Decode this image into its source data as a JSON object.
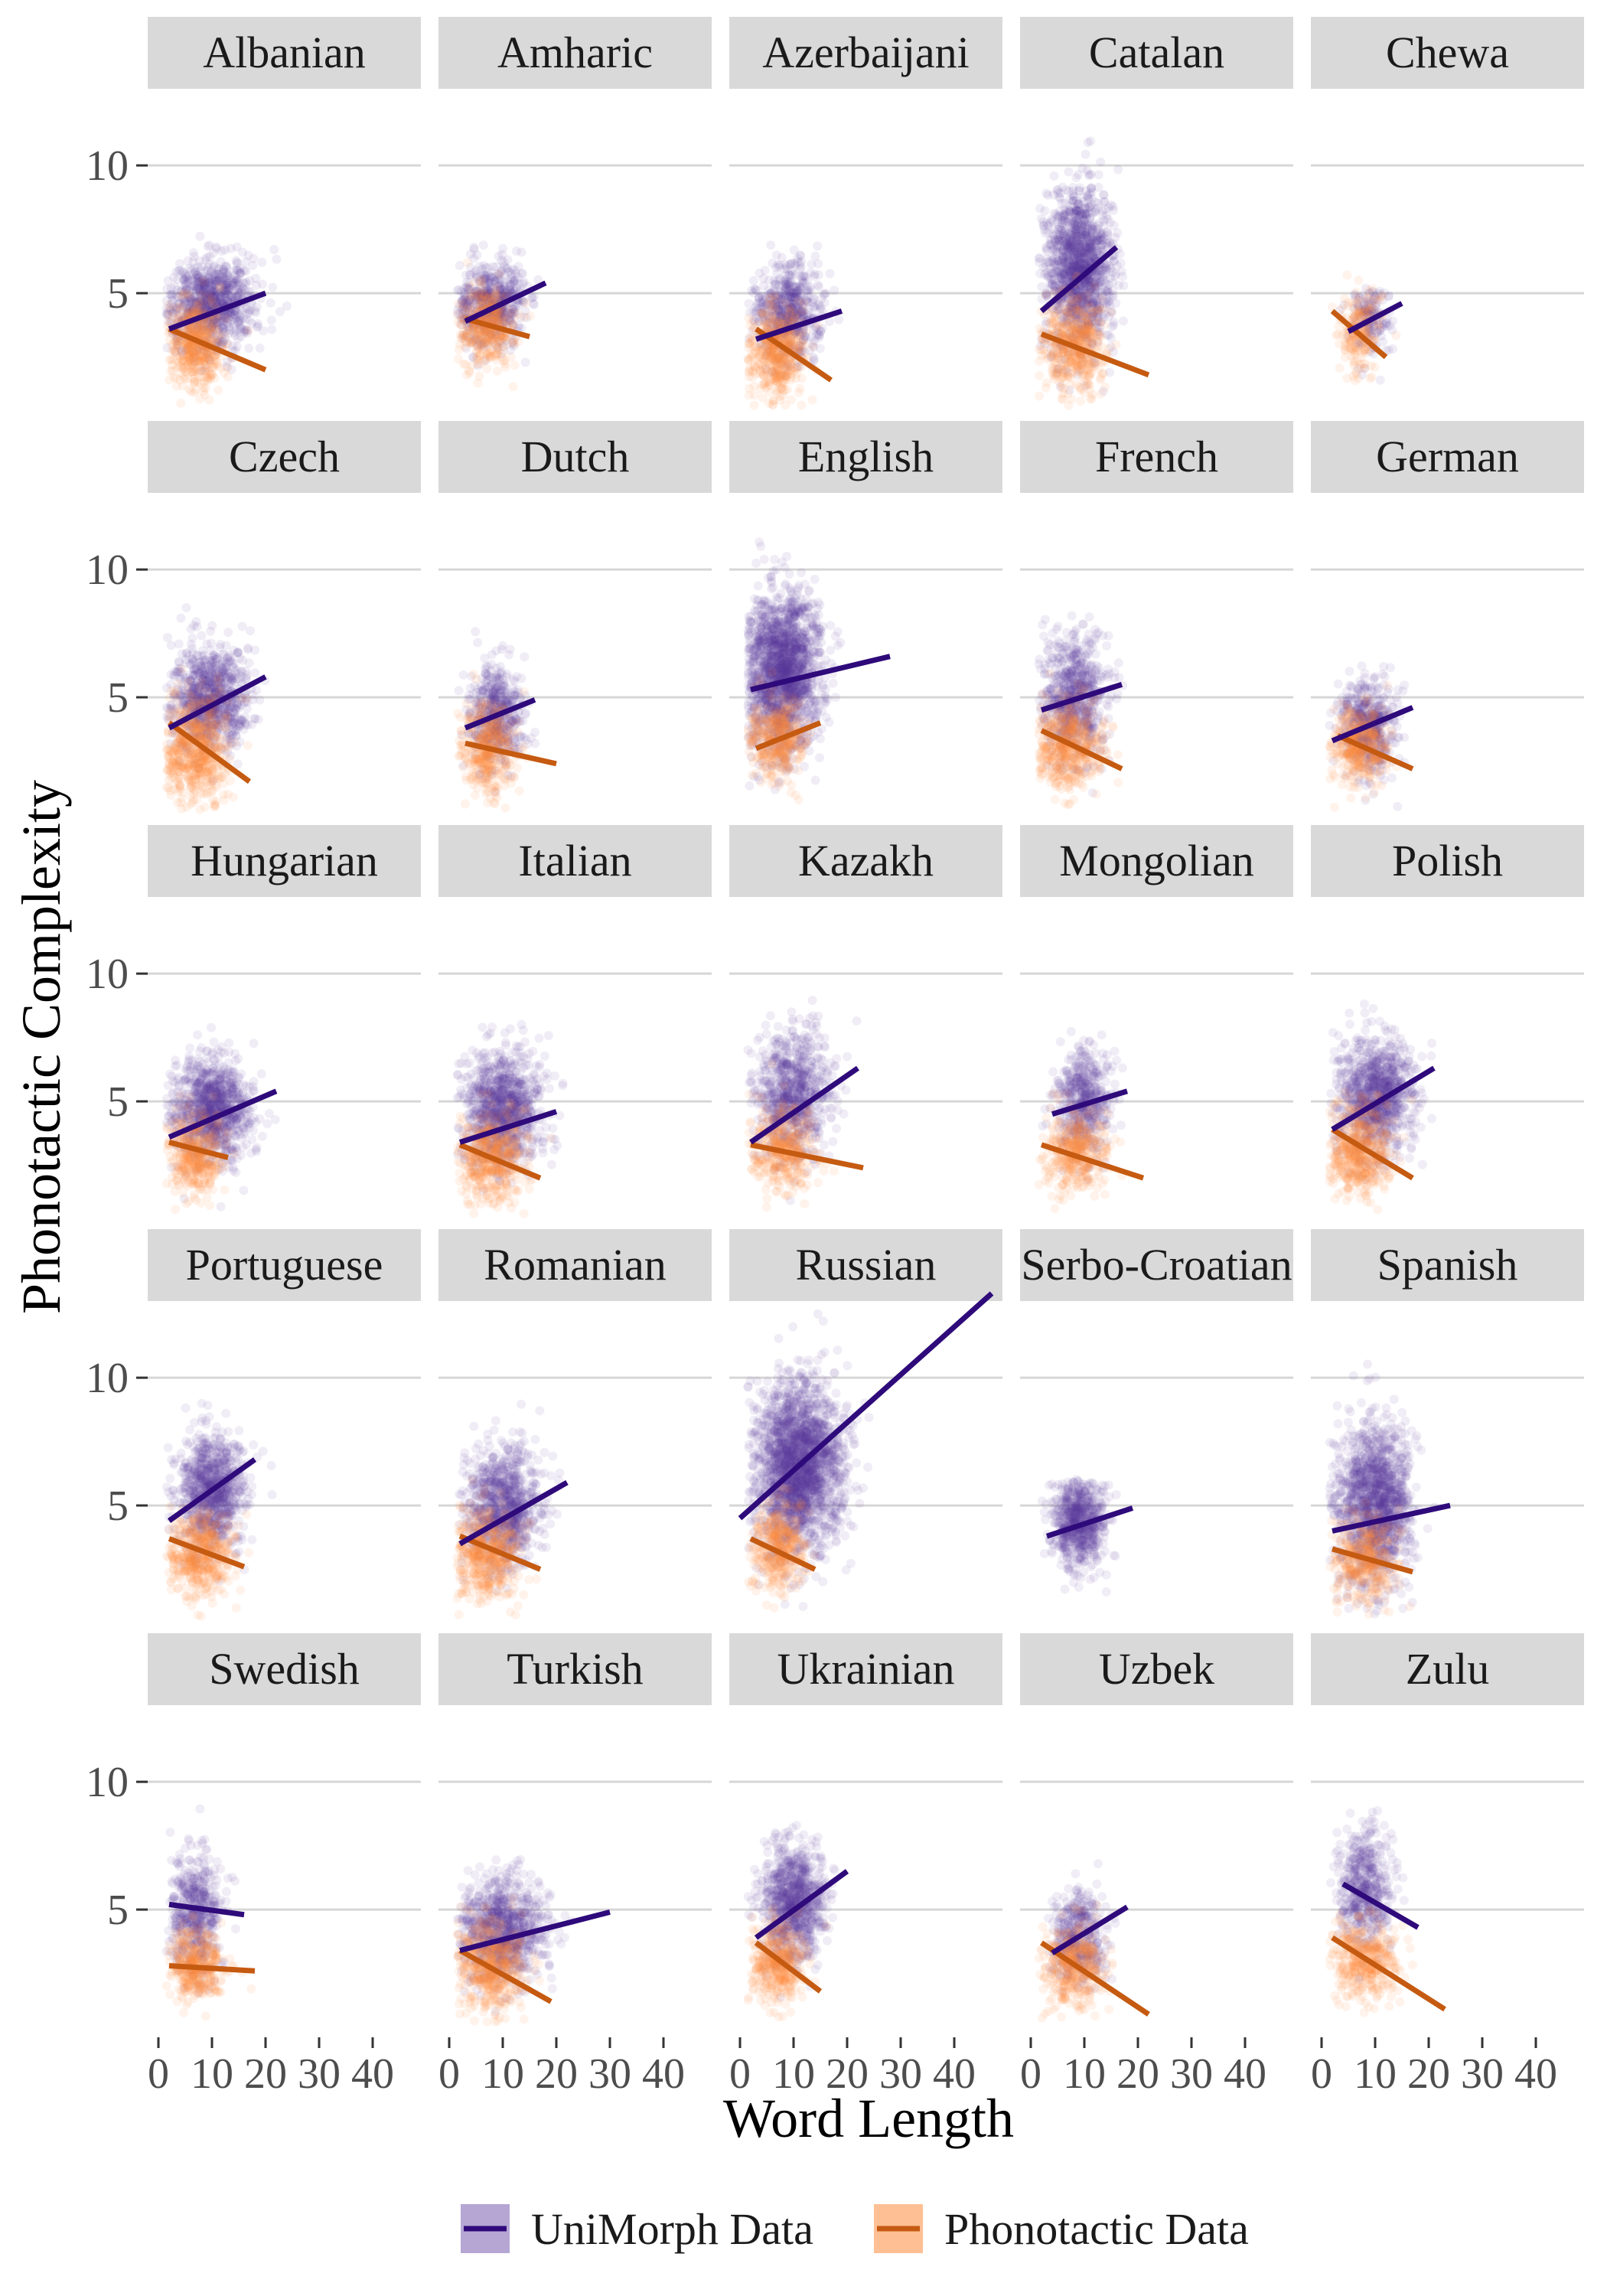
{
  "chart_data": {
    "type": "scatter",
    "xlabel": "Word Length",
    "ylabel": "Phonotactic Complexity",
    "xlim": [
      0,
      47
    ],
    "ylim": [
      0,
      13
    ],
    "xticks": [
      0,
      10,
      20,
      30,
      40
    ],
    "yticks": [
      5,
      10
    ],
    "grid": true,
    "legend_position": "bottom",
    "series": [
      {
        "name": "UniMorph Data",
        "color": "#2e0a7a",
        "point_color": "#5b3aa0"
      },
      {
        "name": "Phonotactic Data",
        "color": "#c55a11",
        "point_color": "#ff8a3d"
      }
    ],
    "panels": [
      {
        "label": "Albanian",
        "unimorph": {
          "x": [
            2,
            20
          ],
          "y": [
            3.6,
            5.0
          ],
          "cx": 10,
          "cy": 4.6,
          "sx": 4,
          "sy": 0.9,
          "n": 900
        },
        "phonotactic": {
          "x": [
            2,
            20
          ],
          "y": [
            3.6,
            2.0
          ],
          "cx": 7,
          "cy": 3.1,
          "sx": 2.5,
          "sy": 0.9,
          "n": 500
        }
      },
      {
        "label": "Amharic",
        "unimorph": {
          "x": [
            3,
            18
          ],
          "y": [
            3.9,
            5.4
          ],
          "cx": 8,
          "cy": 4.6,
          "sx": 3,
          "sy": 0.8,
          "n": 600
        },
        "phonotactic": {
          "x": [
            3,
            15
          ],
          "y": [
            4.0,
            3.3
          ],
          "cx": 7,
          "cy": 3.6,
          "sx": 2.5,
          "sy": 0.8,
          "n": 400
        }
      },
      {
        "label": "Azerbaijani",
        "unimorph": {
          "x": [
            3,
            19
          ],
          "y": [
            3.2,
            4.3
          ],
          "cx": 9,
          "cy": 4.3,
          "sx": 3,
          "sy": 0.9,
          "n": 600
        },
        "phonotactic": {
          "x": [
            3,
            17
          ],
          "y": [
            3.6,
            1.6
          ],
          "cx": 7,
          "cy": 2.7,
          "sx": 2.5,
          "sy": 0.9,
          "n": 500
        }
      },
      {
        "label": "Catalan",
        "unimorph": {
          "x": [
            2,
            16
          ],
          "y": [
            4.3,
            6.8
          ],
          "cx": 9,
          "cy": 6.0,
          "sx": 3,
          "sy": 1.5,
          "n": 1400
        },
        "phonotactic": {
          "x": [
            2,
            22
          ],
          "y": [
            3.4,
            1.8
          ],
          "cx": 8,
          "cy": 3.0,
          "sx": 3,
          "sy": 0.9,
          "n": 500
        }
      },
      {
        "label": "Chewa",
        "unimorph": {
          "x": [
            5,
            15
          ],
          "y": [
            3.5,
            4.6
          ],
          "cx": 9,
          "cy": 4.0,
          "sx": 2,
          "sy": 0.7,
          "n": 150
        },
        "phonotactic": {
          "x": [
            2,
            12
          ],
          "y": [
            4.3,
            2.5
          ],
          "cx": 7,
          "cy": 3.5,
          "sx": 2,
          "sy": 0.8,
          "n": 200
        }
      },
      {
        "label": "Czech",
        "unimorph": {
          "x": [
            2,
            20
          ],
          "y": [
            3.8,
            5.8
          ],
          "cx": 10,
          "cy": 5.0,
          "sx": 3.5,
          "sy": 1.0,
          "n": 900
        },
        "phonotactic": {
          "x": [
            2,
            17
          ],
          "y": [
            4.0,
            1.7
          ],
          "cx": 7,
          "cy": 3.0,
          "sx": 3,
          "sy": 1.0,
          "n": 600
        }
      },
      {
        "label": "Dutch",
        "unimorph": {
          "x": [
            3,
            16
          ],
          "y": [
            3.8,
            4.9
          ],
          "cx": 9,
          "cy": 4.3,
          "sx": 2.5,
          "sy": 1.0,
          "n": 500
        },
        "phonotactic": {
          "x": [
            3,
            20
          ],
          "y": [
            3.2,
            2.4
          ],
          "cx": 7,
          "cy": 3.0,
          "sx": 2.5,
          "sy": 0.9,
          "n": 400
        }
      },
      {
        "label": "English",
        "unimorph": {
          "x": [
            2,
            28
          ],
          "y": [
            5.3,
            6.6
          ],
          "cx": 8,
          "cy": 6.0,
          "sx": 3.5,
          "sy": 1.5,
          "n": 1800
        },
        "phonotactic": {
          "x": [
            3,
            15
          ],
          "y": [
            3.0,
            4.0
          ],
          "cx": 7,
          "cy": 3.4,
          "sx": 2.5,
          "sy": 0.8,
          "n": 400
        }
      },
      {
        "label": "French",
        "unimorph": {
          "x": [
            2,
            17
          ],
          "y": [
            4.5,
            5.5
          ],
          "cx": 8,
          "cy": 5.0,
          "sx": 3,
          "sy": 1.2,
          "n": 700
        },
        "phonotactic": {
          "x": [
            2,
            17
          ],
          "y": [
            3.7,
            2.2
          ],
          "cx": 7,
          "cy": 3.1,
          "sx": 3,
          "sy": 0.9,
          "n": 500
        }
      },
      {
        "label": "German",
        "unimorph": {
          "x": [
            2,
            17
          ],
          "y": [
            3.3,
            4.6
          ],
          "cx": 9,
          "cy": 4.0,
          "sx": 2.5,
          "sy": 0.9,
          "n": 500
        },
        "phonotactic": {
          "x": [
            3,
            17
          ],
          "y": [
            3.5,
            2.2
          ],
          "cx": 7,
          "cy": 3.0,
          "sx": 2.5,
          "sy": 0.8,
          "n": 400
        }
      },
      {
        "label": "Hungarian",
        "unimorph": {
          "x": [
            2,
            22
          ],
          "y": [
            3.6,
            5.4
          ],
          "cx": 10,
          "cy": 4.7,
          "sx": 3.5,
          "sy": 1.0,
          "n": 1000
        },
        "phonotactic": {
          "x": [
            2,
            13
          ],
          "y": [
            3.4,
            2.8
          ],
          "cx": 7,
          "cy": 3.0,
          "sx": 2.5,
          "sy": 0.8,
          "n": 400
        }
      },
      {
        "label": "Italian",
        "unimorph": {
          "x": [
            2,
            20
          ],
          "y": [
            3.4,
            4.6
          ],
          "cx": 10,
          "cy": 4.7,
          "sx": 3.5,
          "sy": 1.1,
          "n": 1000
        },
        "phonotactic": {
          "x": [
            2,
            17
          ],
          "y": [
            3.3,
            2.0
          ],
          "cx": 8,
          "cy": 2.8,
          "sx": 3,
          "sy": 0.9,
          "n": 500
        }
      },
      {
        "label": "Kazakh",
        "unimorph": {
          "x": [
            2,
            22
          ],
          "y": [
            3.4,
            6.3
          ],
          "cx": 10,
          "cy": 5.3,
          "sx": 3.5,
          "sy": 1.2,
          "n": 800
        },
        "phonotactic": {
          "x": [
            2,
            23
          ],
          "y": [
            3.3,
            2.4
          ],
          "cx": 8,
          "cy": 3.1,
          "sx": 3,
          "sy": 0.8,
          "n": 400
        }
      },
      {
        "label": "Mongolian",
        "unimorph": {
          "x": [
            4,
            18
          ],
          "y": [
            4.5,
            5.4
          ],
          "cx": 10,
          "cy": 5.0,
          "sx": 2.5,
          "sy": 1.0,
          "n": 500
        },
        "phonotactic": {
          "x": [
            2,
            21
          ],
          "y": [
            3.3,
            2.0
          ],
          "cx": 8,
          "cy": 3.0,
          "sx": 3,
          "sy": 0.8,
          "n": 400
        }
      },
      {
        "label": "Polish",
        "unimorph": {
          "x": [
            2,
            21
          ],
          "y": [
            3.9,
            6.3
          ],
          "cx": 10,
          "cy": 5.2,
          "sx": 3.5,
          "sy": 1.1,
          "n": 1000
        },
        "phonotactic": {
          "x": [
            2,
            17
          ],
          "y": [
            3.9,
            2.0
          ],
          "cx": 7,
          "cy": 3.0,
          "sx": 3,
          "sy": 0.9,
          "n": 500
        }
      },
      {
        "label": "Portuguese",
        "unimorph": {
          "x": [
            2,
            18
          ],
          "y": [
            4.4,
            6.8
          ],
          "cx": 10,
          "cy": 5.6,
          "sx": 3,
          "sy": 1.1,
          "n": 900
        },
        "phonotactic": {
          "x": [
            2,
            16
          ],
          "y": [
            3.7,
            2.6
          ],
          "cx": 8,
          "cy": 3.1,
          "sx": 3,
          "sy": 0.8,
          "n": 500
        }
      },
      {
        "label": "Romanian",
        "unimorph": {
          "x": [
            2,
            22
          ],
          "y": [
            3.5,
            5.9
          ],
          "cx": 10,
          "cy": 5.0,
          "sx": 3.5,
          "sy": 1.1,
          "n": 900
        },
        "phonotactic": {
          "x": [
            2,
            17
          ],
          "y": [
            3.8,
            2.5
          ],
          "cx": 7,
          "cy": 3.1,
          "sx": 3,
          "sy": 0.9,
          "n": 500
        }
      },
      {
        "label": "Russian",
        "unimorph": {
          "x": [
            0,
            47
          ],
          "y": [
            4.5,
            13.3
          ],
          "cx": 11,
          "cy": 6.6,
          "sx": 4,
          "sy": 1.6,
          "n": 2200
        },
        "phonotactic": {
          "x": [
            2,
            14
          ],
          "y": [
            3.7,
            2.5
          ],
          "cx": 7,
          "cy": 3.3,
          "sx": 2.5,
          "sy": 0.8,
          "n": 400
        }
      },
      {
        "label": "Serbo-Croatian",
        "unimorph": {
          "x": [
            3,
            19
          ],
          "y": [
            3.8,
            4.9
          ],
          "cx": 9,
          "cy": 4.2,
          "sx": 2.5,
          "sy": 0.8,
          "n": 700
        },
        "phonotactic": null
      },
      {
        "label": "Spanish",
        "unimorph": {
          "x": [
            2,
            24
          ],
          "y": [
            4.0,
            5.0
          ],
          "cx": 10,
          "cy": 5.2,
          "sx": 3.5,
          "sy": 1.5,
          "n": 1400
        },
        "phonotactic": {
          "x": [
            2,
            17
          ],
          "y": [
            3.3,
            2.4
          ],
          "cx": 8,
          "cy": 2.9,
          "sx": 3,
          "sy": 0.8,
          "n": 400
        }
      },
      {
        "label": "Swedish",
        "unimorph": {
          "x": [
            2,
            16
          ],
          "y": [
            5.2,
            4.8
          ],
          "cx": 7,
          "cy": 5.0,
          "sx": 2.5,
          "sy": 1.2,
          "n": 500
        },
        "phonotactic": {
          "x": [
            2,
            18
          ],
          "y": [
            2.8,
            2.6
          ],
          "cx": 7,
          "cy": 2.8,
          "sx": 2.5,
          "sy": 0.7,
          "n": 400
        }
      },
      {
        "label": "Turkish",
        "unimorph": {
          "x": [
            2,
            30
          ],
          "y": [
            3.4,
            4.9
          ],
          "cx": 10,
          "cy": 4.2,
          "sx": 4,
          "sy": 1.0,
          "n": 900
        },
        "phonotactic": {
          "x": [
            2,
            19
          ],
          "y": [
            3.4,
            1.4
          ],
          "cx": 8,
          "cy": 2.8,
          "sx": 3,
          "sy": 0.9,
          "n": 500
        }
      },
      {
        "label": "Ukrainian",
        "unimorph": {
          "x": [
            3,
            20
          ],
          "y": [
            3.9,
            6.5
          ],
          "cx": 10,
          "cy": 5.3,
          "sx": 3,
          "sy": 1.1,
          "n": 900
        },
        "phonotactic": {
          "x": [
            3,
            15
          ],
          "y": [
            3.7,
            1.8
          ],
          "cx": 7,
          "cy": 2.9,
          "sx": 2.5,
          "sy": 0.8,
          "n": 400
        }
      },
      {
        "label": "Uzbek",
        "unimorph": {
          "x": [
            4,
            18
          ],
          "y": [
            3.3,
            5.1
          ],
          "cx": 9,
          "cy": 4.0,
          "sx": 2.5,
          "sy": 0.9,
          "n": 400
        },
        "phonotactic": {
          "x": [
            2,
            22
          ],
          "y": [
            3.7,
            0.9
          ],
          "cx": 8,
          "cy": 2.8,
          "sx": 3,
          "sy": 0.8,
          "n": 400
        }
      },
      {
        "label": "Zulu",
        "unimorph": {
          "x": [
            4,
            18
          ],
          "y": [
            6.0,
            4.3
          ],
          "cx": 8,
          "cy": 5.8,
          "sx": 2.5,
          "sy": 1.1,
          "n": 500
        },
        "phonotactic": {
          "x": [
            2,
            23
          ],
          "y": [
            3.9,
            1.1
          ],
          "cx": 8,
          "cy": 3.0,
          "sx": 3,
          "sy": 0.8,
          "n": 400
        }
      }
    ]
  }
}
